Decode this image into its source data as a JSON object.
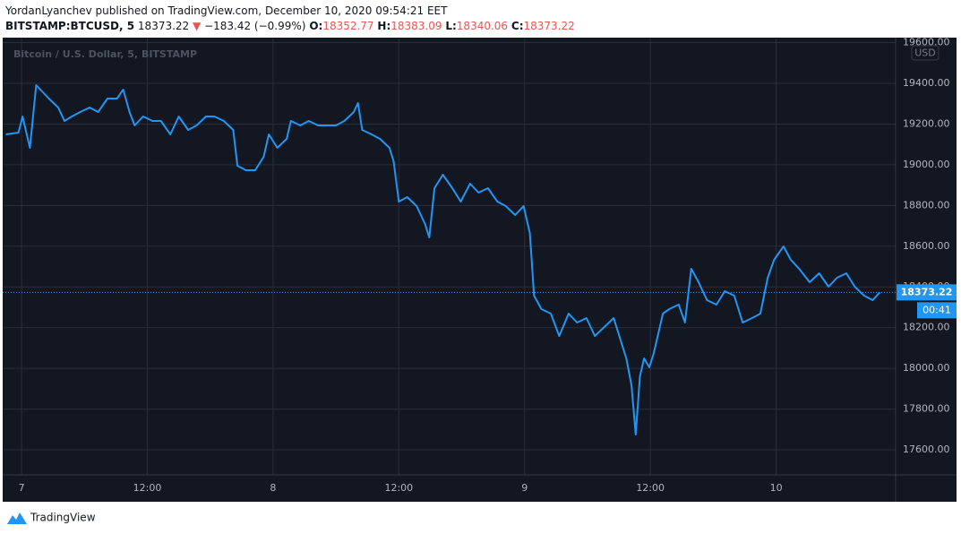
{
  "header": {
    "line1": "YordanLyanchev published on TradingView.com, December 10, 2020 09:54:21 EET",
    "symbol": "BITSTAMP:BTCUSD, 5",
    "last": "18373.22",
    "change": "−183.42 (−0.99%)",
    "open_label": "O:",
    "open": "18352.77",
    "high_label": "H:",
    "high": "18383.09",
    "low_label": "L:",
    "low": "18340.06",
    "close_label": "C:",
    "close": "18373.22"
  },
  "chart_data": {
    "type": "line",
    "title": "Bitcoin / U.S. Dollar, 5, BITSTAMP",
    "currency": "USD",
    "color": "#2196f3",
    "grid": true,
    "x": [
      -1.5,
      -0.3,
      0.1,
      0.8,
      1.4,
      1.8,
      2.6,
      3.5,
      4.1,
      4.8,
      5.6,
      6.5,
      7.3,
      8.2,
      9.1,
      9.7,
      10.3,
      10.8,
      11.6,
      12.5,
      13.3,
      14.2,
      15.0,
      15.9,
      16.7,
      17.6,
      18.4,
      19.3,
      20.2,
      20.6,
      21.4,
      22.3,
      23.1,
      23.6,
      24.4,
      25.3,
      25.7,
      26.6,
      27.4,
      28.3,
      29.1,
      30.0,
      30.8,
      31.7,
      32.1,
      32.5,
      33.4,
      34.2,
      35.1,
      35.5,
      36.0,
      36.8,
      37.7,
      38.5,
      38.9,
      39.4,
      40.2,
      41.1,
      41.9,
      42.8,
      43.6,
      44.5,
      45.4,
      46.2,
      47.1,
      47.9,
      48.5,
      48.9,
      49.6,
      50.5,
      51.3,
      52.2,
      53.0,
      53.9,
      54.7,
      55.6,
      56.5,
      57.3,
      57.7,
      58.2,
      58.6,
      59.0,
      59.4,
      59.9,
      60.3,
      60.7,
      61.2,
      61.8,
      62.7,
      63.3,
      63.9,
      64.6,
      65.4,
      66.3,
      67.1,
      68.0,
      68.8,
      69.7,
      70.5,
      71.2,
      71.8,
      72.7,
      73.4,
      74.2,
      75.2,
      76.1,
      77.0,
      77.8,
      78.7,
      79.5,
      80.4,
      81.2,
      81.9
    ],
    "values": [
      19149,
      19158,
      19237,
      19083,
      19391,
      19369,
      19325,
      19281,
      19215,
      19237,
      19259,
      19281,
      19259,
      19325,
      19325,
      19369,
      19259,
      19193,
      19237,
      19215,
      19215,
      19149,
      19237,
      19171,
      19193,
      19237,
      19237,
      19215,
      19171,
      18995,
      18973,
      18973,
      19039,
      19149,
      19083,
      19127,
      19215,
      19193,
      19215,
      19193,
      19193,
      19193,
      19215,
      19259,
      19303,
      19171,
      19149,
      19127,
      19083,
      19017,
      18819,
      18841,
      18797,
      18709,
      18643,
      18885,
      18951,
      18885,
      18819,
      18907,
      18863,
      18885,
      18819,
      18797,
      18753,
      18797,
      18665,
      18357,
      18291,
      18269,
      18159,
      18269,
      18225,
      18247,
      18159,
      18203,
      18247,
      18115,
      18049,
      17917,
      17675,
      17961,
      18049,
      18005,
      18071,
      18159,
      18269,
      18291,
      18313,
      18225,
      18489,
      18423,
      18335,
      18313,
      18379,
      18357,
      18225,
      18247,
      18269,
      18445,
      18533,
      18599,
      18533,
      18489,
      18423,
      18467,
      18401,
      18445,
      18467,
      18401,
      18357,
      18335,
      18373.22
    ],
    "xlim": [
      -1.8,
      83.4
    ],
    "ylim": [
      17477,
      19620
    ],
    "xticks": [
      {
        "value": 0,
        "label": "7"
      },
      {
        "value": 12,
        "label": "12:00"
      },
      {
        "value": 24,
        "label": "8"
      },
      {
        "value": 36,
        "label": "12:00"
      },
      {
        "value": 48,
        "label": "9"
      },
      {
        "value": 60,
        "label": "12:00"
      },
      {
        "value": 72,
        "label": "10"
      }
    ],
    "yticks": [
      {
        "value": 17600,
        "label": "17600.00"
      },
      {
        "value": 17800,
        "label": "17800.00"
      },
      {
        "value": 18000,
        "label": "18000.00"
      },
      {
        "value": 18200,
        "label": "18200.00"
      },
      {
        "value": 18400,
        "label": "18400.00"
      },
      {
        "value": 18600,
        "label": "18600.00"
      },
      {
        "value": 18800,
        "label": "18800.00"
      },
      {
        "value": 19000,
        "label": "19000.00"
      },
      {
        "value": 19200,
        "label": "19200.00"
      },
      {
        "value": 19400,
        "label": "19400.00"
      },
      {
        "value": 19600,
        "label": "19600.00"
      }
    ],
    "last_price": 18373.22,
    "countdown": "00:41"
  },
  "footer": {
    "brand": "TradingView"
  }
}
